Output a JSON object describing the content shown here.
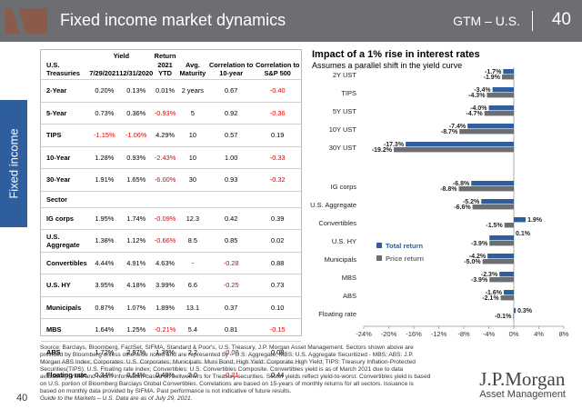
{
  "header": {
    "title": "Fixed income market dynamics",
    "brand": "GTM – U.S.",
    "page": "40"
  },
  "side_tab": "Fixed income",
  "table": {
    "group_headers": {
      "yield": "Yield",
      "return": "Return"
    },
    "columns": [
      "U.S. Treasuries",
      "7/29/2021",
      "12/31/2020",
      "2021 YTD",
      "Avg. Maturity",
      "Correlation to 10-year",
      "Correlation to S&P 500"
    ],
    "treasuries": [
      {
        "name": "2-Year",
        "y1": "0.20%",
        "y2": "0.13%",
        "ret": "0.01%",
        "mat": "2 years",
        "c10": "0.67",
        "csp": "-0.40"
      },
      {
        "name": "5-Year",
        "y1": "0.73%",
        "y2": "0.36%",
        "ret": "-0.93%",
        "mat": "5",
        "c10": "0.92",
        "csp": "-0.36"
      },
      {
        "name": "TIPS",
        "y1": "-1.15%",
        "y2": "-1.06%",
        "ret": "4.29%",
        "mat": "10",
        "c10": "0.57",
        "csp": "0.19"
      },
      {
        "name": "10-Year",
        "y1": "1.28%",
        "y2": "0.93%",
        "ret": "-2.43%",
        "mat": "10",
        "c10": "1.00",
        "csp": "-0.33"
      },
      {
        "name": "30-Year",
        "y1": "1.91%",
        "y2": "1.65%",
        "ret": "-6.00%",
        "mat": "30",
        "c10": "0.93",
        "csp": "-0.32"
      }
    ],
    "sector_label": "Sector",
    "sectors": [
      {
        "name": "IG corps",
        "y1": "1.95%",
        "y2": "1.74%",
        "ret": "-0.09%",
        "mat": "12.3",
        "c10": "0.42",
        "csp": "0.39"
      },
      {
        "name": "U.S. Aggregate",
        "y1": "1.38%",
        "y2": "1.12%",
        "ret": "-0.66%",
        "mat": "8.5",
        "c10": "0.85",
        "csp": "0.02"
      },
      {
        "name": "Convertibles",
        "y1": "4.44%",
        "y2": "4.91%",
        "ret": "4.63%",
        "mat": "-",
        "c10": "-0.28",
        "csp": "0.88"
      },
      {
        "name": "U.S. HY",
        "y1": "3.95%",
        "y2": "4.18%",
        "ret": "3.99%",
        "mat": "6.6",
        "c10": "-0.25",
        "csp": "0.73"
      },
      {
        "name": "Municipals",
        "y1": "0.87%",
        "y2": "1.07%",
        "ret": "1.89%",
        "mat": "13.1",
        "c10": "0.37",
        "csp": "0.10"
      },
      {
        "name": "MBS",
        "y1": "1.64%",
        "y2": "1.25%",
        "ret": "-0.21%",
        "mat": "5.4",
        "c10": "0.81",
        "csp": "-0.15"
      },
      {
        "name": "ABS",
        "y1": "1.72%",
        "y2": "2.87%",
        "ret": "1.39%",
        "mat": "2.2",
        "c10": "-0.08",
        "csp": "0.08"
      },
      {
        "name": "Floating rate",
        "y1": "0.34%",
        "y2": "0.54%",
        "ret": "0.48%",
        "mat": "2.0",
        "c10": "-0.21",
        "csp": "0.44"
      }
    ]
  },
  "chart_data": {
    "type": "bar",
    "orientation": "horizontal",
    "title": "Impact of a 1% rise in interest rates",
    "subtitle": "Assumes a parallel shift in the yield curve",
    "categories": [
      "2Y UST",
      "TIPS",
      "5Y UST",
      "10Y UST",
      "30Y UST",
      "IG corps",
      "U.S. Aggregate",
      "Convertibles",
      "U.S. HY",
      "Municipals",
      "MBS",
      "ABS",
      "Floating rate"
    ],
    "series": [
      {
        "name": "Total return",
        "color": "#2e5e9e",
        "values": [
          -1.7,
          -3.4,
          -4.0,
          -7.4,
          -17.3,
          -6.8,
          -5.2,
          1.9,
          -3.9,
          -4.2,
          -2.3,
          -1.6,
          0.3
        ]
      },
      {
        "name": "Price return",
        "color": "#6d6e71",
        "values": [
          -1.9,
          -4.3,
          -4.7,
          -8.7,
          -19.2,
          -8.8,
          -6.6,
          -1.5,
          -3.9,
          -5.0,
          -3.9,
          -2.1,
          -0.1
        ]
      }
    ],
    "labels": {
      "Total return": [
        "-1.7%",
        "-3.4%",
        "-4.0%",
        "-7.4%",
        "-17.3%",
        "-6.8%",
        "-5.2%",
        "1.9%",
        "",
        "-4.2%",
        "-2.3%",
        "-1.6%",
        "0.3%"
      ],
      "Price return": [
        "-1.9%",
        "-4.3%",
        "-4.7%",
        "-8.7%",
        "-19.2%",
        "-8.8%",
        "-6.6%",
        "-1.5%",
        "-3.9%",
        "-5.0%",
        "-3.9%",
        "-2.1%",
        "-0.1%"
      ]
    },
    "extra_label": {
      "category": "Convertibles",
      "text": "0.1%"
    },
    "xlim": [
      -24,
      8
    ],
    "xticks": [
      -24,
      -20,
      -16,
      -12,
      -8,
      -4,
      0,
      4,
      8
    ],
    "xtick_labels": [
      "-24%",
      "-20%",
      "-16%",
      "-12%",
      "-8%",
      "-4%",
      "0%",
      "4%",
      "8%"
    ],
    "legend_position": "middle-left"
  },
  "footer": {
    "source": "Source: Barclays, Bloomberg, FactSet, SIFMA, Standard & Poor's, U.S. Treasury, J.P. Morgan Asset Management. Sectors shown above are provided by Bloomberg unless otherwise noted and are represented by – U.S. Aggregate; MBS: U.S. Aggregate Securitized - MBS; ABS: J.P. Morgan ABS Index; Corporates: U.S. Corporates; Municipals: Muni Bond; High Yield: Corporate High Yield; TIPS: Treasury Inflation-Protected Securities(TIPS); U.S. Floating rate index; Convertibles: U.S. Convertibles Composite. Convertibles yield is as of March 2021 due to data availability. Yield and return information based on bellwethers for Treasury securities. Sector yields reflect yield-to-worst. Convertibles yield is based on U.S. portion of Bloomberg Barclays Global Convertibles. Correlations are based on 15-years of monthly returns for all sectors. Issuance is based on monthly data provided by SIFMA. Past performance is not indicative of future results.",
    "guide": "Guide to the Markets – U.S. Data are as of July 29, 2021.",
    "page": "40"
  },
  "brand": {
    "name": "J.P.Morgan",
    "sub": "Asset Management"
  }
}
